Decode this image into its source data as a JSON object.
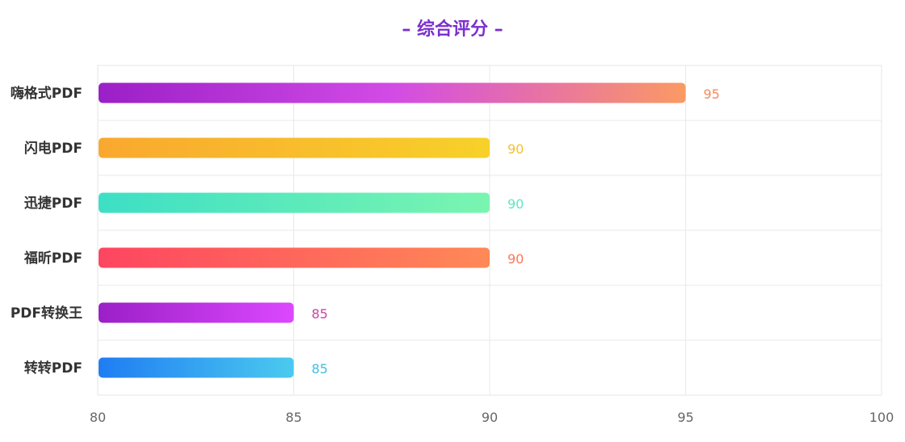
{
  "chart_data": {
    "type": "bar",
    "orientation": "horizontal",
    "title": "– 综合评分 –",
    "title_color": "#7b2fd0",
    "categories": [
      "嗨格式PDF",
      "闪电PDF",
      "迅捷PDF",
      "福昕PDF",
      "PDF转换王",
      "转转PDF"
    ],
    "values": [
      95,
      90,
      90,
      90,
      85,
      85
    ],
    "xlim": [
      80,
      100
    ],
    "xticks": [
      80,
      85,
      90,
      95,
      100
    ],
    "grid": true,
    "legend": "none",
    "bar_gradients": [
      [
        "#9b1fc7",
        "#d24be6",
        "#fb9a63"
      ],
      [
        "#f9a82f",
        "#f7d129"
      ],
      [
        "#3ddfc5",
        "#7af5b0"
      ],
      [
        "#fe4560",
        "#ff8957"
      ],
      [
        "#9b1fc7",
        "#dc48ff"
      ],
      [
        "#1f7df3",
        "#4bcaef"
      ]
    ],
    "value_label_colors": [
      "#f5895e",
      "#f5c22a",
      "#5ee7c0",
      "#fe7757",
      "#c8459f",
      "#44bddf"
    ]
  }
}
